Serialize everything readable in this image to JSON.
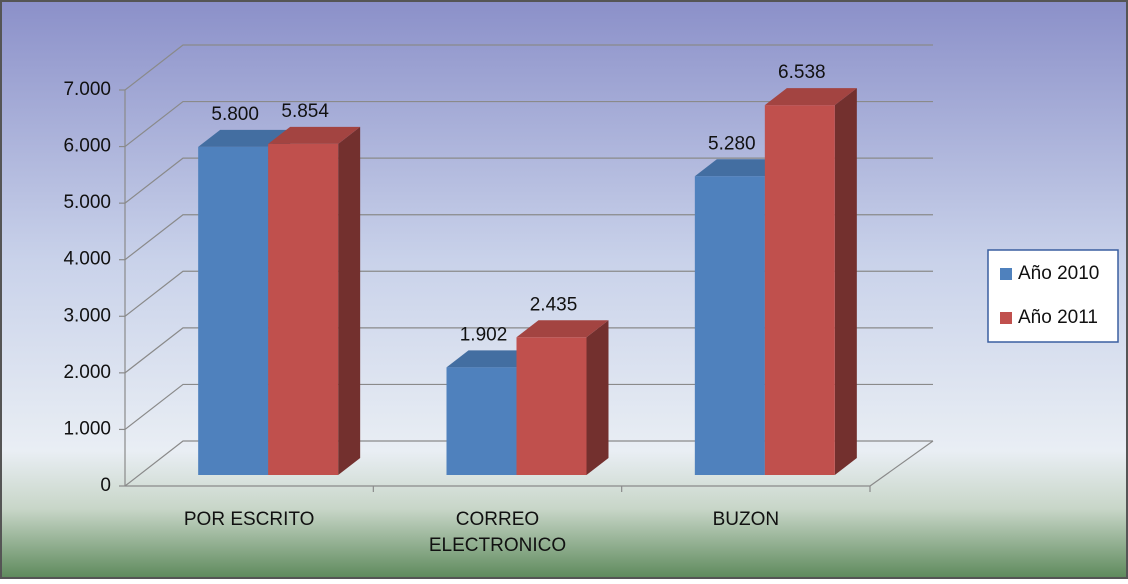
{
  "chart_data": {
    "type": "bar3d",
    "categories": [
      "POR ESCRITO",
      "CORREO ELECTRONICO",
      "BUZON"
    ],
    "series": [
      {
        "name": "Año 2010",
        "color": "#4f81bd",
        "values": [
          5800,
          1902,
          5280
        ],
        "value_labels": [
          "5.800",
          "1.902",
          "5.280"
        ]
      },
      {
        "name": "Año 2011",
        "color": "#c0504d",
        "values": [
          5854,
          2435,
          6538
        ],
        "value_labels": [
          "5.854",
          "2.435",
          "6.538"
        ]
      }
    ],
    "ylim": [
      0,
      7000
    ],
    "yticks": [
      0,
      {
        "value": 1000,
        "label": "1.000"
      },
      {
        "value": 2000,
        "label": "2.000"
      },
      {
        "value": 3000,
        "label": "3.000"
      },
      {
        "value": 4000,
        "label": "4.000"
      },
      {
        "value": 5000,
        "label": "5.000"
      },
      {
        "value": 6000,
        "label": "6.000"
      },
      {
        "value": 7000,
        "label": "7.000"
      }
    ],
    "grid": true,
    "legend": "right"
  }
}
